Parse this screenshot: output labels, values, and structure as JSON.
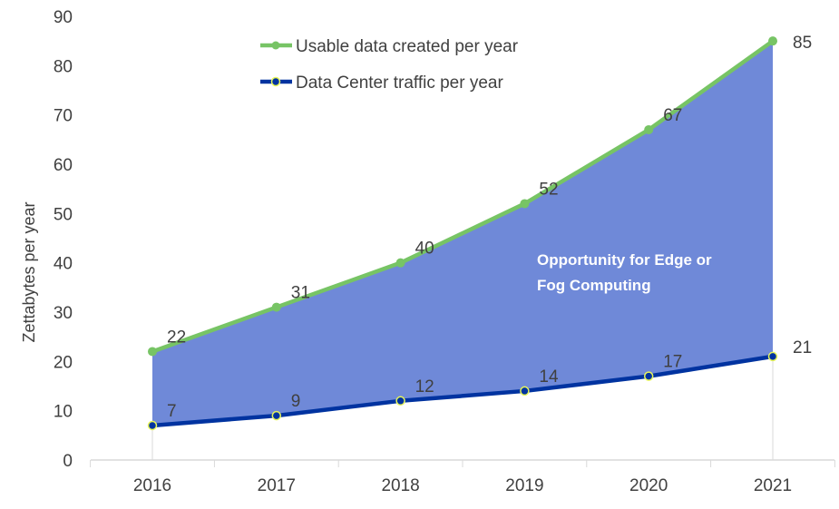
{
  "chart_data": {
    "type": "area",
    "title": "",
    "xlabel": "",
    "ylabel": "Zettabytes per year",
    "categories": [
      "2016",
      "2017",
      "2018",
      "2019",
      "2020",
      "2021"
    ],
    "ylim": [
      0,
      90
    ],
    "yticks": [
      0,
      10,
      20,
      30,
      40,
      50,
      60,
      70,
      80,
      90
    ],
    "grid": false,
    "legend_position": "top-center",
    "series": [
      {
        "name": "Usable data created per year",
        "values": [
          22,
          31,
          40,
          52,
          67,
          85
        ],
        "color": "#77C465",
        "marker_color": "#77C465"
      },
      {
        "name": "Data Center traffic per year",
        "values": [
          7,
          9,
          12,
          14,
          17,
          21
        ],
        "color": "#0033A0",
        "marker_color": "#0033A0",
        "marker_edge": "#E8F55A"
      }
    ],
    "fill_between_color": "#6F89D8",
    "annotation": [
      "Opportunity for Edge or",
      "Fog Computing"
    ]
  }
}
